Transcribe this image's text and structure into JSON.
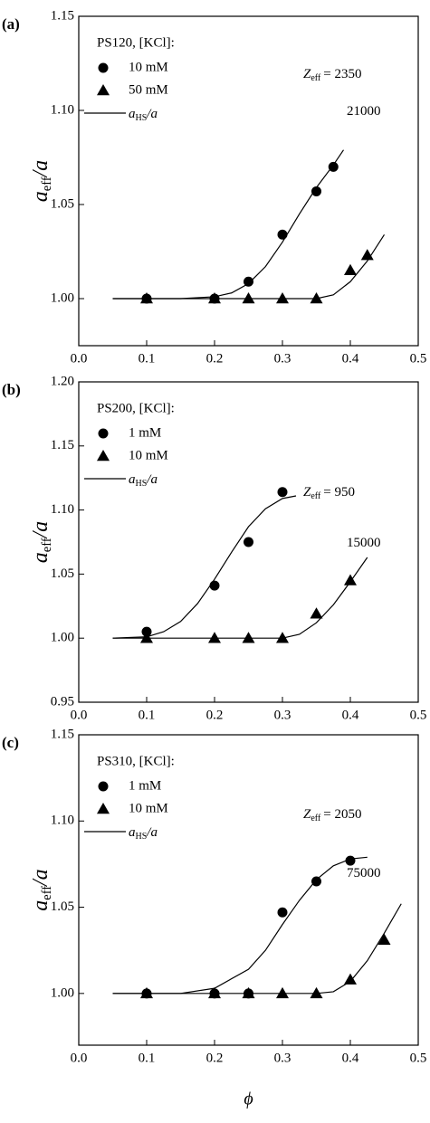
{
  "chart_data": [
    {
      "type": "scatter",
      "panel_label": "(a)",
      "legend_title": "PS120, [KCl]:",
      "y_label": {
        "main": "a",
        "sub": "eff",
        "rest": "/a"
      },
      "fit_label": {
        "main": "a",
        "sub": "HS",
        "rest": "/a"
      },
      "xlim": [
        0,
        0.5
      ],
      "xticks": [
        {
          "value": 0,
          "label": "0.0"
        },
        0.1,
        0.2,
        0.3,
        0.4,
        0.5
      ],
      "ylim": [
        0.975,
        1.15
      ],
      "yticks": [
        {
          "value": 1,
          "label": "1.00"
        },
        1.05,
        {
          "value": 1.1,
          "label": "1.10"
        },
        1.15
      ],
      "series": [
        {
          "name": "10 mM",
          "marker": "circle",
          "color": "#000000",
          "x": [
            0.1,
            0.2,
            0.25,
            0.3,
            0.35,
            0.375
          ],
          "values": [
            1.0,
            1.0,
            1.009,
            1.034,
            1.057,
            1.07
          ]
        },
        {
          "name": "50 mM",
          "marker": "triangle",
          "color": "#000000",
          "x": [
            0.1,
            0.2,
            0.25,
            0.3,
            0.35,
            0.4,
            0.425
          ],
          "values": [
            1.0,
            1.0,
            1.0,
            1.0,
            1.0,
            1.015,
            1.023
          ]
        }
      ],
      "fits": [
        {
          "x": [
            0.05,
            0.15,
            0.2,
            0.225,
            0.25,
            0.275,
            0.3,
            0.325,
            0.35,
            0.375,
            0.39
          ],
          "values": [
            1.0,
            1.0,
            1.001,
            1.003,
            1.008,
            1.017,
            1.03,
            1.045,
            1.059,
            1.071,
            1.079
          ]
        },
        {
          "x": [
            0.05,
            0.3,
            0.35,
            0.375,
            0.4,
            0.425,
            0.45
          ],
          "values": [
            1.0,
            1.0,
            1.0,
            1.002,
            1.009,
            1.02,
            1.034
          ]
        }
      ],
      "annotations": [
        {
          "main": "Z",
          "sub": "eff",
          "rest": "= 2350"
        },
        {
          "main": "21000"
        }
      ]
    },
    {
      "type": "scatter",
      "panel_label": "(b)",
      "legend_title": "PS200, [KCl]:",
      "y_label": {
        "main": "a",
        "sub": "eff",
        "rest": "/a"
      },
      "fit_label": {
        "main": "a",
        "sub": "HS",
        "rest": "/a"
      },
      "xlim": [
        0,
        0.5
      ],
      "xticks": [
        {
          "value": 0,
          "label": "0.0"
        },
        0.1,
        0.2,
        0.3,
        0.4,
        0.5
      ],
      "ylim": [
        0.95,
        1.2
      ],
      "yticks": [
        0.95,
        {
          "value": 1,
          "label": "1.00"
        },
        1.05,
        {
          "value": 1.1,
          "label": "1.10"
        },
        1.15,
        {
          "value": 1.2,
          "label": "1.20"
        }
      ],
      "series": [
        {
          "name": "1 mM",
          "marker": "circle",
          "color": "#000000",
          "x": [
            0.1,
            0.2,
            0.25,
            0.3
          ],
          "values": [
            1.005,
            1.041,
            1.075,
            1.114
          ]
        },
        {
          "name": "10 mM",
          "marker": "triangle",
          "color": "#000000",
          "x": [
            0.1,
            0.2,
            0.25,
            0.3,
            0.35,
            0.4
          ],
          "values": [
            1.0,
            1.0,
            1.0,
            1.0,
            1.019,
            1.045
          ]
        }
      ],
      "fits": [
        {
          "x": [
            0.05,
            0.1,
            0.125,
            0.15,
            0.175,
            0.2,
            0.225,
            0.25,
            0.275,
            0.3,
            0.32
          ],
          "values": [
            1.0,
            1.001,
            1.005,
            1.013,
            1.027,
            1.046,
            1.067,
            1.087,
            1.101,
            1.109,
            1.111
          ]
        },
        {
          "x": [
            0.05,
            0.3,
            0.325,
            0.35,
            0.375,
            0.4,
            0.425
          ],
          "values": [
            1.0,
            1.0,
            1.003,
            1.012,
            1.026,
            1.044,
            1.063
          ]
        }
      ],
      "annotations": [
        {
          "main": "Z",
          "sub": "eff",
          "rest": "= 950"
        },
        {
          "main": "15000"
        }
      ]
    },
    {
      "type": "scatter",
      "panel_label": "(c)",
      "legend_title": "PS310, [KCl]:",
      "y_label": {
        "main": "a",
        "sub": "eff",
        "rest": "/a"
      },
      "fit_label": {
        "main": "a",
        "sub": "HS",
        "rest": "/a"
      },
      "x_label": "ϕ",
      "xlim": [
        0,
        0.5
      ],
      "xticks": [
        {
          "value": 0,
          "label": "0.0"
        },
        0.1,
        0.2,
        0.3,
        0.4,
        0.5
      ],
      "ylim": [
        0.97,
        1.15
      ],
      "yticks": [
        {
          "value": 1,
          "label": "1.00"
        },
        1.05,
        {
          "value": 1.1,
          "label": "1.10"
        },
        1.15
      ],
      "series": [
        {
          "name": "1 mM",
          "marker": "circle",
          "color": "#000000",
          "x": [
            0.1,
            0.2,
            0.25,
            0.3,
            0.35,
            0.4
          ],
          "values": [
            1.0,
            1.0,
            1.0,
            1.047,
            1.065,
            1.077
          ]
        },
        {
          "name": "10 mM",
          "marker": "triangle",
          "color": "#000000",
          "x": [
            0.1,
            0.2,
            0.25,
            0.3,
            0.35,
            0.4,
            0.45
          ],
          "values": [
            1.0,
            1.0,
            1.0,
            1.0,
            1.0,
            1.008,
            1.031
          ]
        }
      ],
      "fits": [
        {
          "x": [
            0.05,
            0.15,
            0.2,
            0.25,
            0.275,
            0.3,
            0.325,
            0.35,
            0.375,
            0.4,
            0.425
          ],
          "values": [
            1.0,
            1.0,
            1.003,
            1.014,
            1.025,
            1.04,
            1.054,
            1.066,
            1.074,
            1.078,
            1.079
          ]
        },
        {
          "x": [
            0.05,
            0.35,
            0.375,
            0.4,
            0.425,
            0.45,
            0.475
          ],
          "values": [
            1.0,
            1.0,
            1.001,
            1.007,
            1.019,
            1.035,
            1.052
          ]
        }
      ],
      "annotations": [
        {
          "main": "Z",
          "sub": "eff",
          "rest": "= 2050"
        },
        {
          "main": "75000"
        }
      ]
    }
  ]
}
